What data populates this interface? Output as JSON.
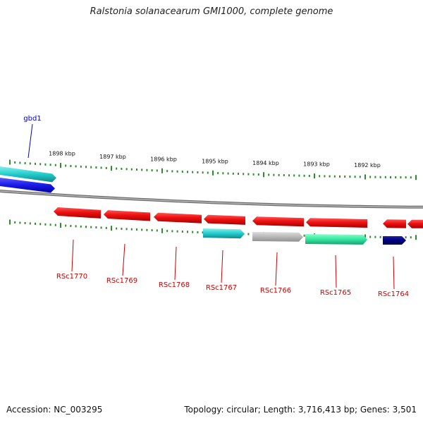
{
  "title": "Ralstonia solanacearum GMI1000, complete genome",
  "footer": {
    "accession": "Accession: NC_003295",
    "summary": "Topology: circular; Length: 3,716,413 bp; Genes: 3,501"
  },
  "colors": {
    "backbone": "#8a8a8a",
    "ticks": "#2e8b2e",
    "tick_label": "#111111",
    "gene_label_red": "#cc0000",
    "gene_label_blue": "#0000bb",
    "red_gene": "#ee1111",
    "cyan_gene": "#22cccc",
    "blue_gene": "#1a1ae6",
    "grey_gene": "#b8b8b8",
    "green_gene": "#33e6a0",
    "navy_gene": "#000080"
  },
  "kbp_labels": [
    "1898 kbp",
    "1897 kbp",
    "1896 kbp",
    "1895 kbp",
    "1894 kbp",
    "1893 kbp",
    "1892 kbp"
  ],
  "genes": [
    {
      "id": "gbd1",
      "label": "gbd1",
      "strand": "+",
      "color": "blue_gene",
      "label_color": "gene_label_blue"
    },
    {
      "id": "cyan-top",
      "label": "",
      "strand": "+",
      "color": "cyan_gene"
    },
    {
      "id": "RSc1770",
      "label": "RSc1770",
      "strand": "-",
      "color": "red_gene",
      "label_color": "gene_label_red"
    },
    {
      "id": "RSc1769",
      "label": "RSc1769",
      "strand": "-",
      "color": "red_gene",
      "label_color": "gene_label_red"
    },
    {
      "id": "RSc1768",
      "label": "RSc1768",
      "strand": "-",
      "color": "red_gene",
      "label_color": "gene_label_red"
    },
    {
      "id": "RSc1767",
      "label": "RSc1767",
      "strand": "-",
      "color": "red_gene",
      "label_color": "gene_label_red"
    },
    {
      "id": "RSc1766",
      "label": "RSc1766",
      "strand": "-",
      "color": "red_gene",
      "label_color": "gene_label_red"
    },
    {
      "id": "RSc1765",
      "label": "RSc1765",
      "strand": "-",
      "color": "red_gene",
      "label_color": "gene_label_red"
    },
    {
      "id": "RSc1764",
      "label": "RSc1764",
      "strand": "-",
      "color": "red_gene",
      "label_color": "gene_label_red"
    }
  ]
}
